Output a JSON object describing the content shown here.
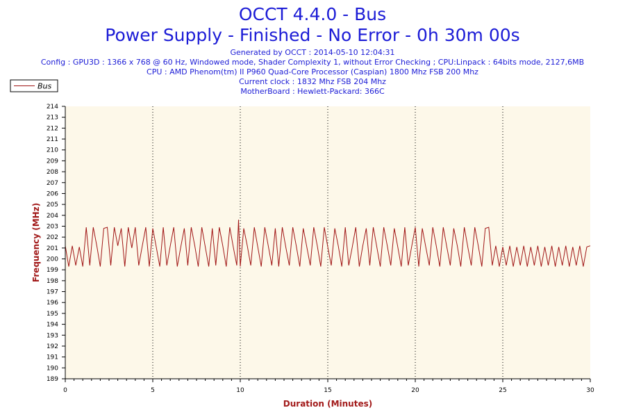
{
  "header": {
    "title": "OCCT 4.4.0 - Bus",
    "subtitle": "Power Supply - Finished - No Error - 0h 30m 00s",
    "info_lines": [
      "Generated by OCCT : 2014-05-10 12:04:31",
      "Config : GPU3D : 1366 x 768 @ 60 Hz, Windowed mode, Shader Complexity 1, without Error Checking ; CPU:Linpack : 64bits mode, 2127,6MB",
      "CPU : AMD Phenom(tm) II P960 Quad-Core Processor (Caspian) 1800 Mhz FSB 200 Mhz",
      "Current clock : 1832 Mhz FSB 204 Mhz",
      "MotherBoard : Hewlett-Packard: 366C"
    ]
  },
  "colors": {
    "title": "#1b1bd6",
    "series": "#a01414",
    "plot_background": "#fdf8e9",
    "axis_title": "#a21a1a"
  },
  "chart_data": {
    "type": "line",
    "xlabel": "Duration (Minutes)",
    "ylabel": "Frequency (MHz)",
    "xlim": [
      0,
      30
    ],
    "ylim": [
      189,
      214
    ],
    "xticks": [
      0,
      5,
      10,
      15,
      20,
      25,
      30
    ],
    "yticks": [
      189,
      190,
      191,
      192,
      193,
      194,
      195,
      196,
      197,
      198,
      199,
      200,
      201,
      202,
      203,
      204,
      205,
      206,
      207,
      208,
      209,
      210,
      211,
      212,
      213,
      214
    ],
    "grid": "vertical dotted at 5-minute ticks",
    "legend": {
      "position": "top-left",
      "entries": [
        "Bus"
      ]
    },
    "series": [
      {
        "name": "Bus",
        "values_note": "fluctuates between ~199.3 and ~203 MHz, single peak ~203.6 near minute 9.9",
        "x": [
          0,
          0.2,
          0.4,
          0.6,
          0.8,
          1.0,
          1.2,
          1.4,
          1.6,
          1.8,
          2.0,
          2.2,
          2.4,
          2.6,
          2.8,
          3.0,
          3.2,
          3.4,
          3.6,
          3.8,
          4.0,
          4.2,
          4.4,
          4.6,
          4.8,
          5.0,
          5.2,
          5.4,
          5.6,
          5.8,
          6.0,
          6.2,
          6.4,
          6.6,
          6.8,
          7.0,
          7.2,
          7.4,
          7.6,
          7.8,
          8.0,
          8.2,
          8.4,
          8.6,
          8.8,
          9.0,
          9.2,
          9.4,
          9.6,
          9.8,
          9.9,
          10.0,
          10.2,
          10.4,
          10.6,
          10.8,
          11.0,
          11.2,
          11.4,
          11.6,
          11.8,
          12.0,
          12.2,
          12.4,
          12.6,
          12.8,
          13.0,
          13.2,
          13.4,
          13.6,
          13.8,
          14.0,
          14.2,
          14.4,
          14.6,
          14.8,
          15.0,
          15.2,
          15.4,
          15.6,
          15.8,
          16.0,
          16.2,
          16.4,
          16.6,
          16.8,
          17.0,
          17.2,
          17.4,
          17.6,
          17.8,
          18.0,
          18.2,
          18.4,
          18.6,
          18.8,
          19.0,
          19.2,
          19.4,
          19.6,
          19.8,
          20.0,
          20.2,
          20.4,
          20.6,
          20.8,
          21.0,
          21.2,
          21.4,
          21.6,
          21.8,
          22.0,
          22.2,
          22.4,
          22.6,
          22.8,
          23.0,
          23.2,
          23.4,
          23.6,
          23.8,
          24.0,
          24.2,
          24.4,
          24.6,
          24.8,
          25.0,
          25.2,
          25.4,
          25.6,
          25.8,
          26.0,
          26.2,
          26.4,
          26.6,
          26.8,
          27.0,
          27.2,
          27.4,
          27.6,
          27.8,
          28.0,
          28.2,
          28.4,
          28.6,
          28.8,
          29.0,
          29.2,
          29.4,
          29.6,
          29.8,
          30.0
        ],
        "values": [
          201.2,
          199.3,
          201.2,
          199.4,
          201.1,
          199.3,
          202.9,
          199.4,
          202.9,
          201.2,
          199.3,
          202.8,
          202.9,
          199.4,
          202.9,
          201.2,
          202.8,
          199.3,
          202.9,
          201.0,
          202.9,
          199.4,
          201.2,
          202.9,
          199.3,
          202.8,
          201.1,
          199.3,
          202.9,
          199.4,
          201.2,
          202.9,
          199.3,
          201.1,
          202.8,
          199.4,
          202.9,
          201.2,
          199.3,
          202.9,
          201.1,
          199.3,
          202.8,
          199.4,
          202.9,
          201.2,
          199.3,
          202.9,
          201.1,
          199.4,
          203.6,
          199.3,
          202.8,
          201.2,
          199.4,
          202.9,
          201.1,
          199.3,
          202.9,
          201.2,
          199.4,
          202.8,
          199.3,
          202.9,
          201.1,
          199.4,
          202.9,
          201.2,
          199.3,
          202.8,
          201.1,
          199.4,
          202.9,
          201.2,
          199.3,
          202.9,
          201.1,
          199.4,
          202.8,
          201.2,
          199.3,
          202.9,
          199.4,
          201.1,
          202.9,
          199.3,
          201.2,
          202.8,
          199.4,
          202.9,
          201.1,
          199.3,
          202.9,
          201.2,
          199.4,
          202.8,
          201.1,
          199.3,
          202.9,
          199.4,
          201.2,
          202.9,
          199.3,
          202.8,
          201.1,
          199.4,
          202.9,
          201.2,
          199.3,
          202.9,
          201.1,
          199.4,
          202.8,
          201.2,
          199.3,
          202.9,
          201.1,
          199.4,
          202.9,
          201.2,
          199.3,
          202.8,
          202.9,
          199.4,
          201.2,
          199.3,
          201.1,
          199.4,
          201.2,
          199.3,
          201.1,
          199.4,
          201.2,
          199.3,
          201.1,
          199.4,
          201.2,
          199.3,
          201.1,
          199.4,
          201.2,
          199.3,
          201.1,
          199.4,
          201.2,
          199.3,
          201.1,
          199.4,
          201.2,
          199.3,
          201.1,
          201.2
        ]
      }
    ]
  }
}
